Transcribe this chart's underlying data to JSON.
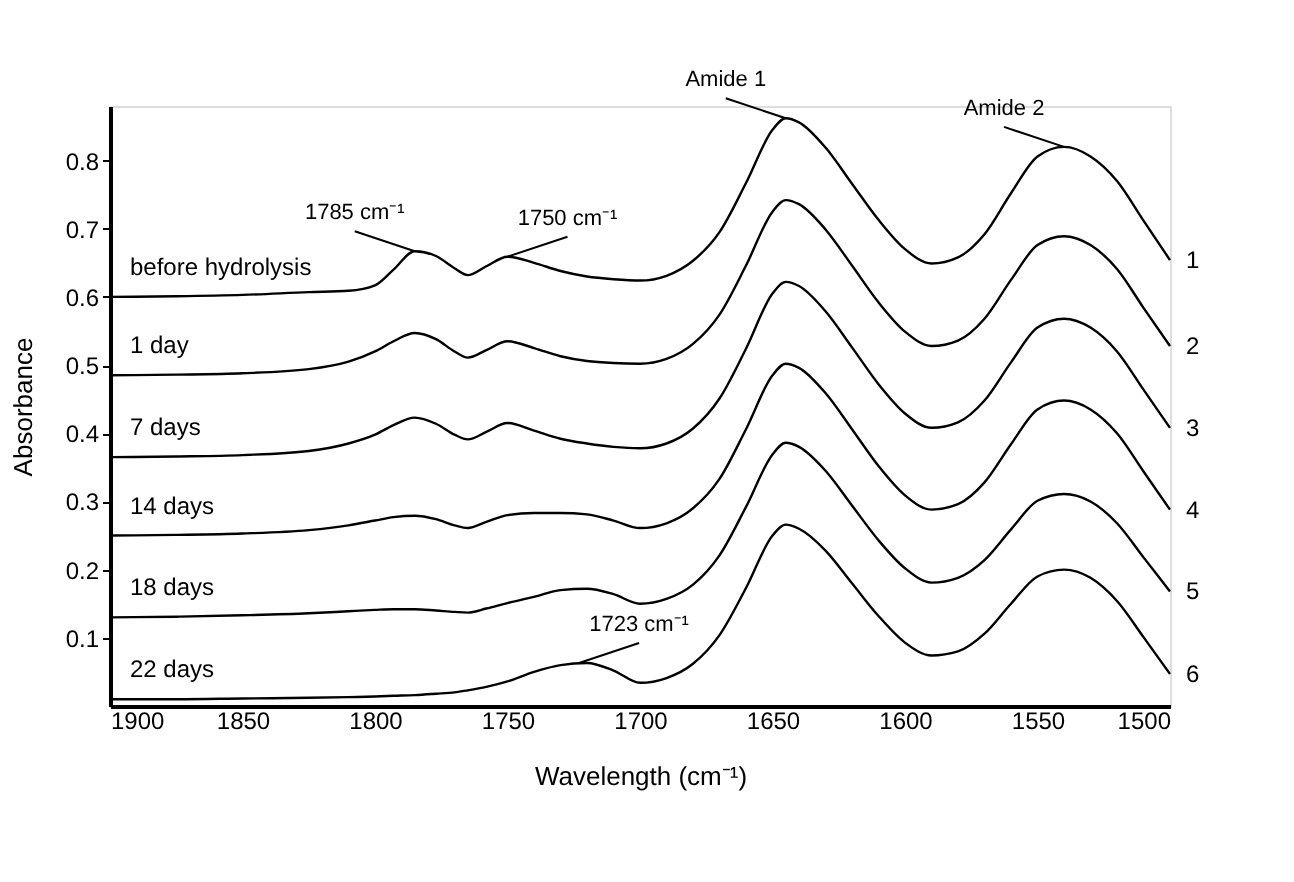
{
  "chart_data": {
    "type": "line",
    "xlabel": "Wavelength (cm⁻¹)",
    "ylabel": "Absorbance",
    "xlim": [
      1900,
      1500
    ],
    "xticks": [
      1900,
      1850,
      1800,
      1750,
      1700,
      1650,
      1600,
      1550,
      1500
    ],
    "ylim": [
      0,
      0.88
    ],
    "yticks": [
      0.1,
      0.2,
      0.3,
      0.4,
      0.5,
      0.6,
      0.7,
      0.8
    ],
    "grid": false,
    "legend": false,
    "marker": "none",
    "line_style": "solid",
    "x": [
      1900,
      1875,
      1850,
      1825,
      1810,
      1800,
      1793,
      1785,
      1777,
      1770,
      1765,
      1758,
      1750,
      1740,
      1730,
      1720,
      1710,
      1700,
      1690,
      1680,
      1670,
      1660,
      1650,
      1645,
      1640,
      1630,
      1620,
      1610,
      1600,
      1590,
      1580,
      1570,
      1560,
      1550,
      1540,
      1530,
      1520,
      1510,
      1500
    ],
    "series": [
      {
        "name": "before hydrolysis",
        "color": "#000000",
        "values": [
          0.6,
          0.601,
          0.603,
          0.607,
          0.609,
          0.617,
          0.64,
          0.667,
          0.66,
          0.642,
          0.632,
          0.645,
          0.659,
          0.65,
          0.638,
          0.63,
          0.626,
          0.624,
          0.631,
          0.653,
          0.695,
          0.767,
          0.845,
          0.862,
          0.856,
          0.819,
          0.766,
          0.713,
          0.67,
          0.649,
          0.658,
          0.692,
          0.752,
          0.806,
          0.82,
          0.806,
          0.77,
          0.712,
          0.654
        ]
      },
      {
        "name": "1 day",
        "color": "#000000",
        "values": [
          0.485,
          0.486,
          0.488,
          0.494,
          0.505,
          0.52,
          0.535,
          0.547,
          0.538,
          0.52,
          0.511,
          0.522,
          0.535,
          0.525,
          0.513,
          0.506,
          0.503,
          0.502,
          0.509,
          0.531,
          0.574,
          0.646,
          0.725,
          0.742,
          0.736,
          0.699,
          0.646,
          0.592,
          0.549,
          0.528,
          0.536,
          0.568,
          0.625,
          0.676,
          0.689,
          0.676,
          0.641,
          0.584,
          0.528
        ]
      },
      {
        "name": "7 days",
        "color": "#000000",
        "values": [
          0.365,
          0.366,
          0.368,
          0.374,
          0.385,
          0.398,
          0.412,
          0.423,
          0.414,
          0.398,
          0.391,
          0.402,
          0.415,
          0.404,
          0.392,
          0.385,
          0.38,
          0.378,
          0.385,
          0.407,
          0.451,
          0.524,
          0.605,
          0.622,
          0.616,
          0.579,
          0.526,
          0.472,
          0.429,
          0.408,
          0.416,
          0.448,
          0.504,
          0.555,
          0.568,
          0.555,
          0.52,
          0.464,
          0.408
        ]
      },
      {
        "name": "14 days",
        "color": "#000000",
        "values": [
          0.25,
          0.251,
          0.253,
          0.258,
          0.265,
          0.272,
          0.277,
          0.279,
          0.274,
          0.265,
          0.261,
          0.27,
          0.28,
          0.283,
          0.283,
          0.281,
          0.272,
          0.261,
          0.268,
          0.29,
          0.333,
          0.406,
          0.485,
          0.502,
          0.496,
          0.459,
          0.406,
          0.352,
          0.309,
          0.288,
          0.296,
          0.328,
          0.384,
          0.435,
          0.448,
          0.435,
          0.4,
          0.344,
          0.288
        ]
      },
      {
        "name": "18 days",
        "color": "#000000",
        "values": [
          0.13,
          0.131,
          0.133,
          0.136,
          0.139,
          0.141,
          0.142,
          0.142,
          0.14,
          0.138,
          0.137,
          0.143,
          0.151,
          0.16,
          0.17,
          0.172,
          0.164,
          0.15,
          0.157,
          0.178,
          0.221,
          0.292,
          0.369,
          0.386,
          0.38,
          0.345,
          0.294,
          0.243,
          0.202,
          0.181,
          0.188,
          0.214,
          0.259,
          0.301,
          0.311,
          0.3,
          0.268,
          0.218,
          0.168
        ]
      },
      {
        "name": "22 days",
        "color": "#000000",
        "values": [
          0.01,
          0.01,
          0.011,
          0.012,
          0.013,
          0.014,
          0.015,
          0.016,
          0.018,
          0.02,
          0.023,
          0.028,
          0.036,
          0.05,
          0.06,
          0.063,
          0.052,
          0.034,
          0.041,
          0.062,
          0.104,
          0.173,
          0.25,
          0.266,
          0.26,
          0.228,
          0.18,
          0.132,
          0.093,
          0.074,
          0.08,
          0.106,
          0.15,
          0.19,
          0.2,
          0.188,
          0.154,
          0.101,
          0.047
        ]
      }
    ],
    "annotations": [
      {
        "text": "1785 cm⁻¹",
        "x": 1785,
        "y": 0.667
      },
      {
        "text": "1750 cm⁻¹",
        "x": 1750,
        "y": 0.659
      },
      {
        "text": "Amide 1",
        "x": 1645,
        "y": 0.862
      },
      {
        "text": "Amide 2",
        "x": 1540,
        "y": 0.82
      },
      {
        "text": "1723 cm⁻¹",
        "x": 1723,
        "y": 0.063
      },
      {
        "text": "1",
        "x": 1500,
        "y": 0.654
      },
      {
        "text": "2",
        "x": 1500,
        "y": 0.528
      },
      {
        "text": "3",
        "x": 1500,
        "y": 0.408
      },
      {
        "text": "4",
        "x": 1500,
        "y": 0.288
      },
      {
        "text": "5",
        "x": 1500,
        "y": 0.168
      },
      {
        "text": "6",
        "x": 1500,
        "y": 0.047
      }
    ]
  }
}
